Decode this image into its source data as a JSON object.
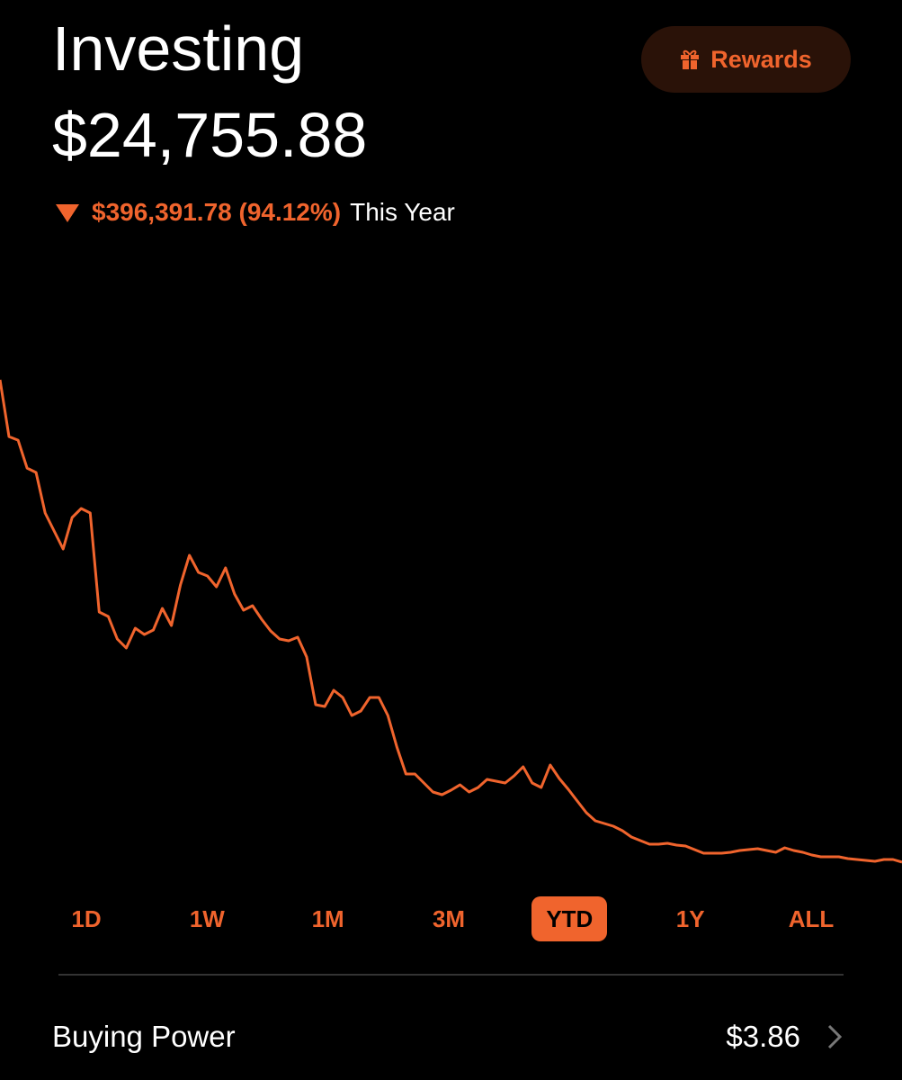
{
  "header": {
    "title": "Investing",
    "value": "$24,755.88",
    "change": "$396,391.78 (94.12%)",
    "period": "This Year",
    "rewards": "Rewards"
  },
  "chart_data": {
    "type": "line",
    "color": "#f0642d",
    "ylim": [
      -6300,
      511400
    ],
    "values": [
      421148,
      374540,
      371582,
      348657,
      344960,
      311682,
      296892,
      282102,
      307985,
      315380,
      311682,
      230337,
      226640,
      208152,
      200757,
      217026,
      211850,
      215547,
      233295,
      219245,
      252522,
      276926,
      262875,
      259917,
      251043,
      266573,
      245127,
      231816,
      235514,
      224421,
      214808,
      208152,
      206673,
      209631,
      193362,
      154169,
      152690,
      166001,
      160085,
      145295,
      148992,
      160085,
      160085,
      145295,
      119412,
      97227,
      97227,
      89832,
      82437,
      80219,
      83916,
      88353,
      82437,
      86135,
      92790,
      91311,
      89832,
      95748,
      103143,
      89832,
      86135,
      104622,
      93530,
      84656,
      75042,
      65429,
      58773,
      56555,
      54336,
      50639,
      45462,
      42504,
      39546,
      39546,
      40286,
      38807,
      38067,
      35109,
      32151,
      32151,
      32151,
      32891,
      34370,
      35109,
      35849,
      34370,
      32891,
      36588,
      34370,
      32891,
      30672,
      29193,
      29193,
      29193,
      27714,
      26975,
      26235,
      25496,
      26975,
      26975,
      24755.88
    ]
  },
  "ranges": {
    "options": [
      "1D",
      "1W",
      "1M",
      "3M",
      "YTD",
      "1Y",
      "ALL"
    ],
    "selected": 4
  },
  "buying_power": {
    "label": "Buying Power",
    "value": "$3.86"
  }
}
